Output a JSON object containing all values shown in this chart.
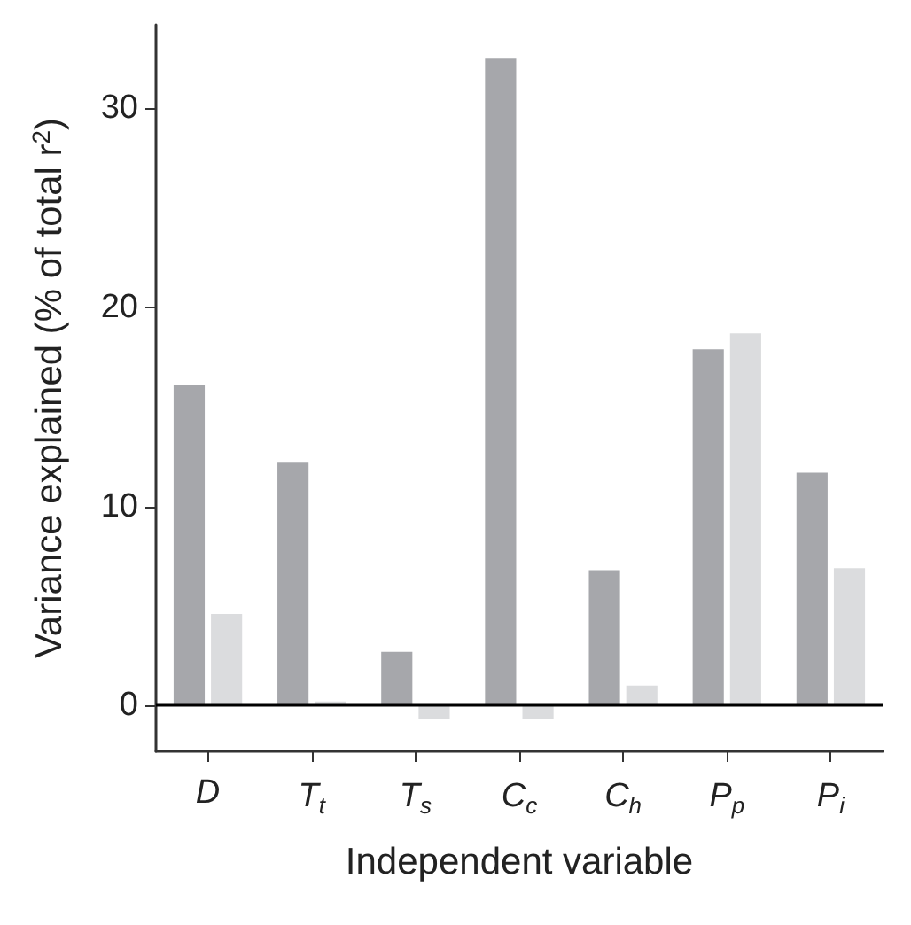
{
  "chart_data": {
    "type": "bar",
    "xlabel": "Independent variable",
    "ylabel": "Variance explained (% of total r$^{2}$)",
    "categories": [
      "D",
      "T$_{t}$",
      "T$_{s}$",
      "C$_{c}$",
      "C$_{h}$",
      "P$_{p}$",
      "P$_{i}$"
    ],
    "series": [
      {
        "color": "#a6a7ab",
        "values": [
          16.1,
          12.2,
          2.7,
          32.5,
          6.8,
          17.9,
          11.7
        ]
      },
      {
        "color": "#dbdcde",
        "values": [
          4.6,
          0.2,
          -0.7,
          -0.7,
          1.0,
          18.7,
          6.9
        ]
      }
    ],
    "ylim": [
      -2.3,
      34.2
    ],
    "yticks": [
      0,
      10,
      20,
      30
    ],
    "ref_lines": [
      {
        "axis": "y",
        "value": 0,
        "color": "#000000"
      }
    ],
    "grid": false
  }
}
